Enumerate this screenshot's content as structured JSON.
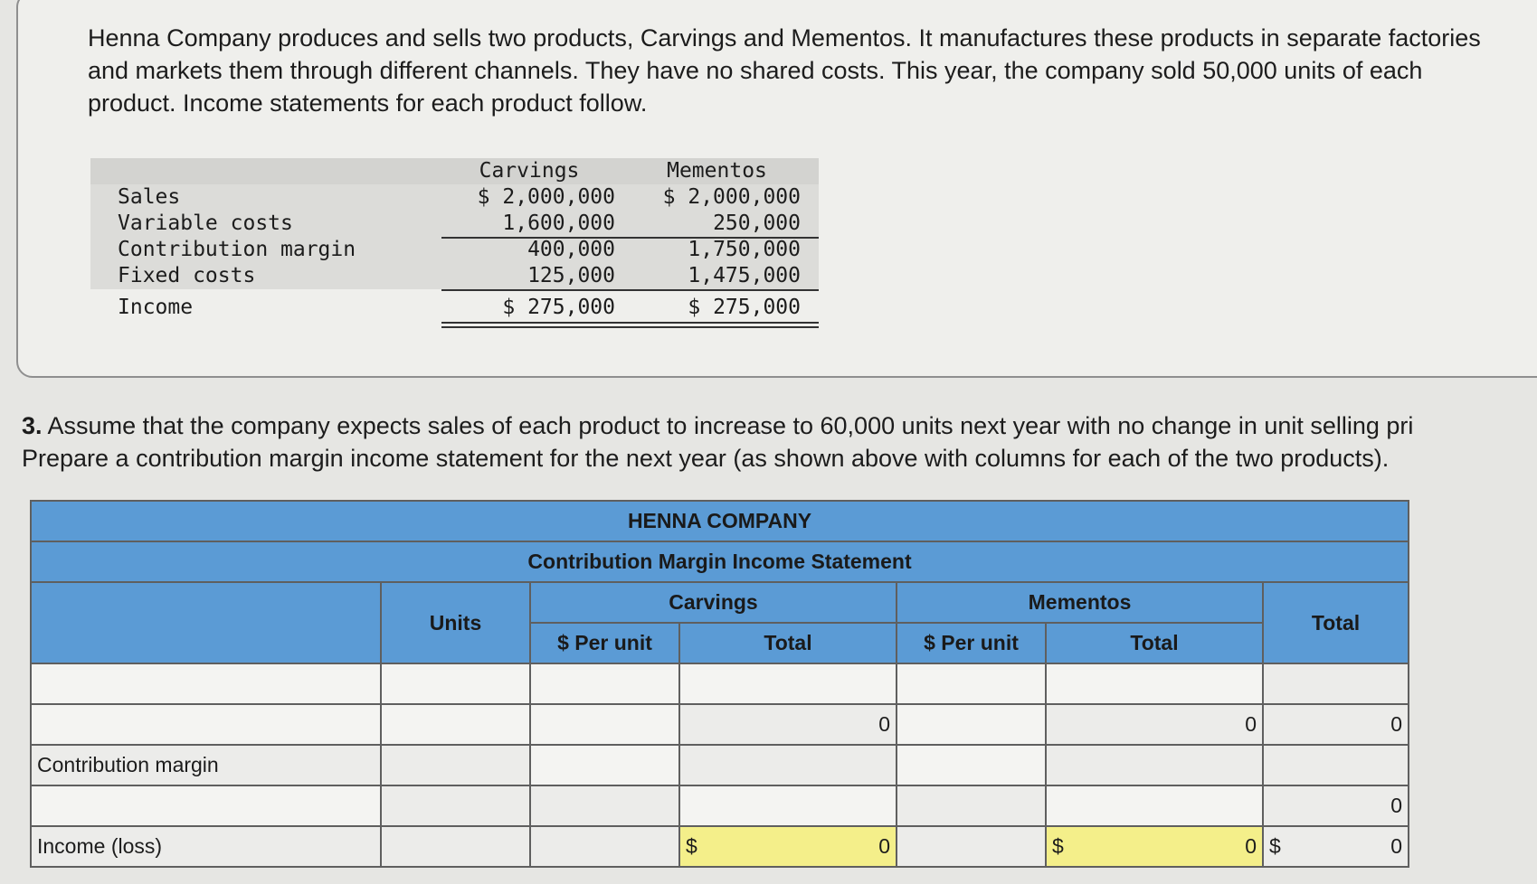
{
  "intro": "Henna Company produces and sells two products, Carvings and Mementos. It manufactures these products in separate factories and markets them through different channels. They have no shared costs. This year, the company sold 50,000 units of each product. Income statements for each product follow.",
  "statement": {
    "headers": [
      "Carvings",
      "Mementos"
    ],
    "rows": [
      {
        "label": "Sales",
        "carvings": "$ 2,000,000",
        "mementos": "$ 2,000,000"
      },
      {
        "label": "Variable costs",
        "carvings": "1,600,000",
        "mementos": "250,000"
      },
      {
        "label": "Contribution margin",
        "carvings": "400,000",
        "mementos": "1,750,000"
      },
      {
        "label": "Fixed costs",
        "carvings": "125,000",
        "mementos": "1,475,000"
      },
      {
        "label": "Income",
        "carvings": "$ 275,000",
        "mementos": "$ 275,000"
      }
    ]
  },
  "question": {
    "number": "3.",
    "line1": "Assume that the company expects sales of each product to increase to 60,000 units next year with no change in unit selling pri",
    "line2": "Prepare a contribution margin income statement for the next year (as shown above with columns for each of the two products)."
  },
  "worksheet": {
    "company": "HENNA COMPANY",
    "title": "Contribution Margin Income Statement",
    "col_units": "Units",
    "col_carvings": "Carvings",
    "col_mementos": "Mementos",
    "col_total": "Total",
    "sub_per_unit": "$ Per unit",
    "sub_total": "Total",
    "label_cm": "Contribution margin",
    "label_income": "Income (loss)",
    "row2": {
      "carv_total": "0",
      "mem_total": "0",
      "grand_total": "0"
    },
    "row4": {
      "grand_total": "0"
    },
    "row5": {
      "dollar": "$",
      "carv_total": "0",
      "mem_total": "0",
      "grand_total": "0"
    }
  }
}
